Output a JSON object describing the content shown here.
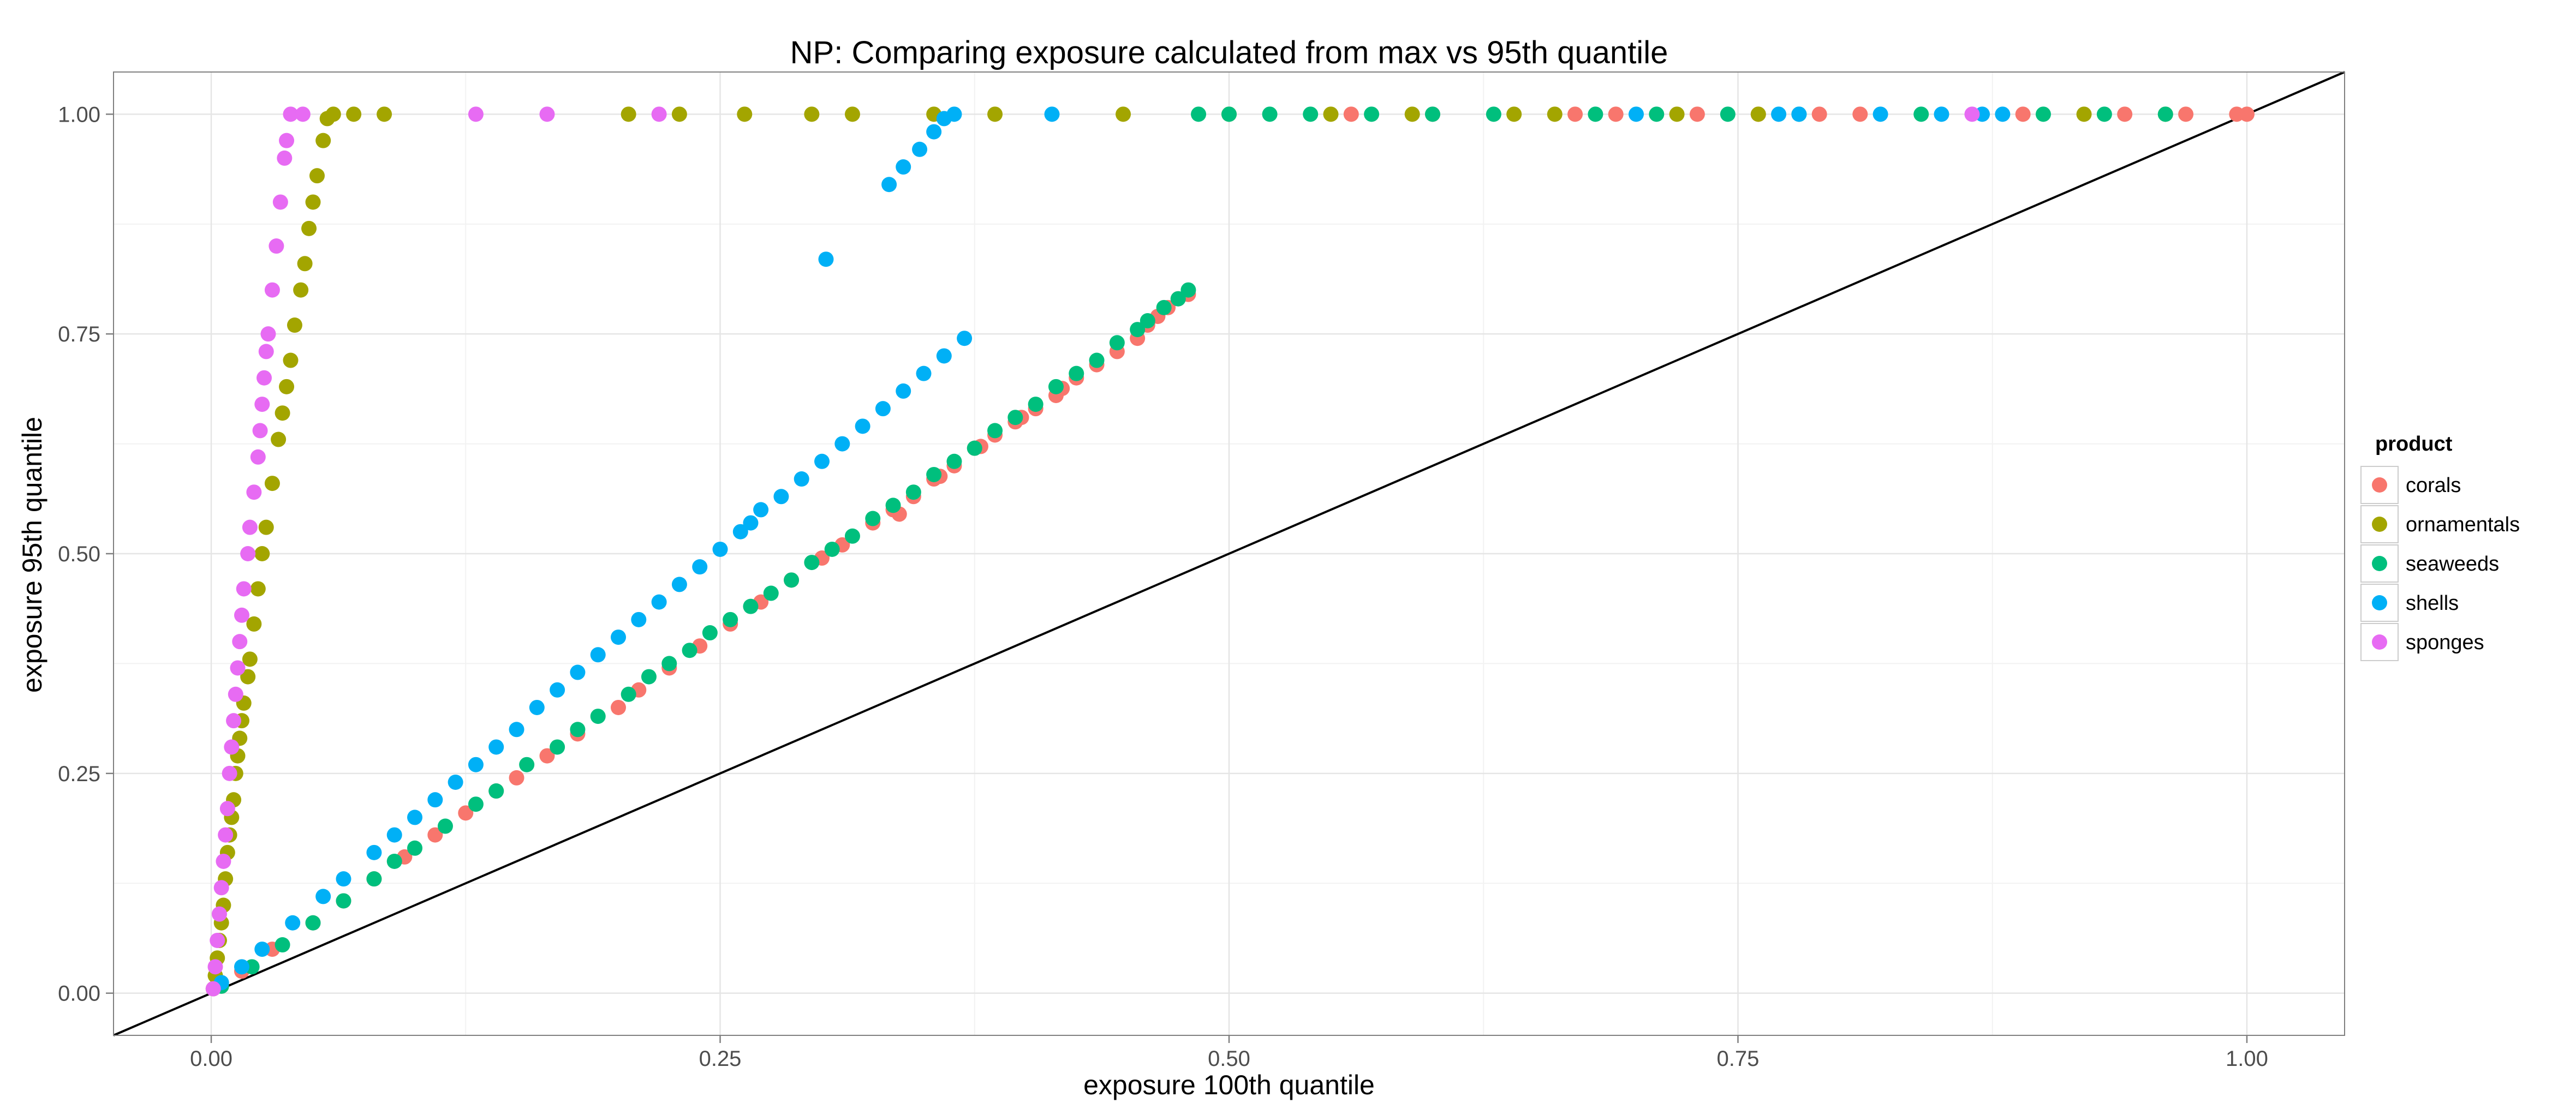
{
  "chart_data": {
    "type": "scatter",
    "title": "NP: Comparing exposure calculated from max vs 95th quantile",
    "xlabel": "exposure 100th quantile",
    "ylabel": "exposure 95th quantile",
    "xlim": [
      -0.048,
      1.048
    ],
    "ylim": [
      -0.048,
      1.048
    ],
    "x_ticks": [
      "0.00",
      "0.25",
      "0.50",
      "0.75",
      "1.00"
    ],
    "y_ticks": [
      "0.00",
      "0.25",
      "0.50",
      "0.75",
      "1.00"
    ],
    "grid": true,
    "legend": {
      "title": "product",
      "position": "right"
    },
    "reference_line": {
      "slope": 1,
      "intercept": 0
    },
    "series": [
      {
        "name": "corals",
        "color": "#F8766D",
        "points": [
          [
            0.005,
            0.008
          ],
          [
            0.015,
            0.025
          ],
          [
            0.03,
            0.05
          ],
          [
            0.05,
            0.08
          ],
          [
            0.065,
            0.105
          ],
          [
            0.08,
            0.13
          ],
          [
            0.095,
            0.155
          ],
          [
            0.11,
            0.18
          ],
          [
            0.125,
            0.205
          ],
          [
            0.14,
            0.23
          ],
          [
            0.15,
            0.245
          ],
          [
            0.165,
            0.27
          ],
          [
            0.18,
            0.295
          ],
          [
            0.2,
            0.325
          ],
          [
            0.21,
            0.345
          ],
          [
            0.225,
            0.37
          ],
          [
            0.24,
            0.395
          ],
          [
            0.255,
            0.42
          ],
          [
            0.27,
            0.445
          ],
          [
            0.285,
            0.47
          ],
          [
            0.3,
            0.495
          ],
          [
            0.31,
            0.51
          ],
          [
            0.325,
            0.535
          ],
          [
            0.335,
            0.55
          ],
          [
            0.345,
            0.565
          ],
          [
            0.355,
            0.585
          ],
          [
            0.365,
            0.6
          ],
          [
            0.375,
            0.62
          ],
          [
            0.385,
            0.635
          ],
          [
            0.395,
            0.65
          ],
          [
            0.405,
            0.665
          ],
          [
            0.415,
            0.68
          ],
          [
            0.425,
            0.7
          ],
          [
            0.435,
            0.715
          ],
          [
            0.445,
            0.73
          ],
          [
            0.455,
            0.745
          ],
          [
            0.46,
            0.76
          ],
          [
            0.465,
            0.77
          ],
          [
            0.47,
            0.78
          ],
          [
            0.475,
            0.79
          ],
          [
            0.48,
            0.795
          ],
          [
            0.338,
            0.545
          ],
          [
            0.358,
            0.588
          ],
          [
            0.378,
            0.622
          ],
          [
            0.398,
            0.655
          ],
          [
            0.418,
            0.688
          ],
          [
            0.56,
            1
          ],
          [
            0.6,
            1
          ],
          [
            0.67,
            1
          ],
          [
            0.69,
            1
          ],
          [
            0.73,
            1
          ],
          [
            0.76,
            1
          ],
          [
            0.79,
            1
          ],
          [
            0.81,
            1
          ],
          [
            0.89,
            1
          ],
          [
            0.94,
            1
          ],
          [
            0.97,
            1
          ],
          [
            0.995,
            1
          ],
          [
            1.0,
            1
          ]
        ]
      },
      {
        "name": "ornamentals",
        "color": "#A3A500",
        "points": [
          [
            0.001,
            0.005
          ],
          [
            0.002,
            0.02
          ],
          [
            0.003,
            0.04
          ],
          [
            0.004,
            0.06
          ],
          [
            0.005,
            0.08
          ],
          [
            0.006,
            0.1
          ],
          [
            0.007,
            0.13
          ],
          [
            0.008,
            0.16
          ],
          [
            0.009,
            0.18
          ],
          [
            0.01,
            0.2
          ],
          [
            0.011,
            0.22
          ],
          [
            0.012,
            0.25
          ],
          [
            0.013,
            0.27
          ],
          [
            0.014,
            0.29
          ],
          [
            0.015,
            0.31
          ],
          [
            0.016,
            0.33
          ],
          [
            0.018,
            0.36
          ],
          [
            0.019,
            0.38
          ],
          [
            0.021,
            0.42
          ],
          [
            0.023,
            0.46
          ],
          [
            0.025,
            0.5
          ],
          [
            0.027,
            0.53
          ],
          [
            0.03,
            0.58
          ],
          [
            0.033,
            0.63
          ],
          [
            0.035,
            0.66
          ],
          [
            0.037,
            0.69
          ],
          [
            0.039,
            0.72
          ],
          [
            0.041,
            0.76
          ],
          [
            0.044,
            0.8
          ],
          [
            0.046,
            0.83
          ],
          [
            0.048,
            0.87
          ],
          [
            0.05,
            0.9
          ],
          [
            0.052,
            0.93
          ],
          [
            0.055,
            0.97
          ],
          [
            0.057,
            0.995
          ],
          [
            0.06,
            1
          ],
          [
            0.07,
            1
          ],
          [
            0.085,
            1
          ],
          [
            0.205,
            1
          ],
          [
            0.23,
            1
          ],
          [
            0.262,
            1
          ],
          [
            0.295,
            1
          ],
          [
            0.315,
            1
          ],
          [
            0.355,
            1
          ],
          [
            0.385,
            1
          ],
          [
            0.448,
            1
          ],
          [
            0.5,
            1
          ],
          [
            0.55,
            1
          ],
          [
            0.59,
            1
          ],
          [
            0.64,
            1
          ],
          [
            0.66,
            1
          ],
          [
            0.72,
            1
          ],
          [
            0.76,
            1
          ],
          [
            0.92,
            1
          ],
          [
            0.96,
            1
          ]
        ]
      },
      {
        "name": "seaweeds",
        "color": "#00BF7D",
        "points": [
          [
            0.005,
            0.008
          ],
          [
            0.02,
            0.03
          ],
          [
            0.035,
            0.055
          ],
          [
            0.05,
            0.08
          ],
          [
            0.065,
            0.105
          ],
          [
            0.08,
            0.13
          ],
          [
            0.09,
            0.15
          ],
          [
            0.1,
            0.165
          ],
          [
            0.115,
            0.19
          ],
          [
            0.13,
            0.215
          ],
          [
            0.14,
            0.23
          ],
          [
            0.155,
            0.26
          ],
          [
            0.17,
            0.28
          ],
          [
            0.18,
            0.3
          ],
          [
            0.19,
            0.315
          ],
          [
            0.205,
            0.34
          ],
          [
            0.215,
            0.36
          ],
          [
            0.225,
            0.375
          ],
          [
            0.235,
            0.39
          ],
          [
            0.245,
            0.41
          ],
          [
            0.255,
            0.425
          ],
          [
            0.265,
            0.44
          ],
          [
            0.275,
            0.455
          ],
          [
            0.285,
            0.47
          ],
          [
            0.295,
            0.49
          ],
          [
            0.305,
            0.505
          ],
          [
            0.315,
            0.52
          ],
          [
            0.325,
            0.54
          ],
          [
            0.335,
            0.555
          ],
          [
            0.345,
            0.57
          ],
          [
            0.355,
            0.59
          ],
          [
            0.365,
            0.605
          ],
          [
            0.375,
            0.62
          ],
          [
            0.385,
            0.64
          ],
          [
            0.395,
            0.655
          ],
          [
            0.405,
            0.67
          ],
          [
            0.415,
            0.69
          ],
          [
            0.425,
            0.705
          ],
          [
            0.435,
            0.72
          ],
          [
            0.445,
            0.74
          ],
          [
            0.455,
            0.755
          ],
          [
            0.46,
            0.765
          ],
          [
            0.468,
            0.78
          ],
          [
            0.475,
            0.79
          ],
          [
            0.48,
            0.8
          ],
          [
            0.485,
            1
          ],
          [
            0.5,
            1
          ],
          [
            0.52,
            1
          ],
          [
            0.54,
            1
          ],
          [
            0.57,
            1
          ],
          [
            0.6,
            1
          ],
          [
            0.63,
            1
          ],
          [
            0.68,
            1
          ],
          [
            0.71,
            1
          ],
          [
            0.745,
            1
          ],
          [
            0.78,
            1
          ],
          [
            0.84,
            1
          ],
          [
            0.9,
            1
          ],
          [
            0.93,
            1
          ],
          [
            0.96,
            1
          ]
        ]
      },
      {
        "name": "shells",
        "color": "#00B0F6",
        "points": [
          [
            0.005,
            0.012
          ],
          [
            0.015,
            0.03
          ],
          [
            0.025,
            0.05
          ],
          [
            0.04,
            0.08
          ],
          [
            0.055,
            0.11
          ],
          [
            0.065,
            0.13
          ],
          [
            0.08,
            0.16
          ],
          [
            0.09,
            0.18
          ],
          [
            0.1,
            0.2
          ],
          [
            0.11,
            0.22
          ],
          [
            0.12,
            0.24
          ],
          [
            0.13,
            0.26
          ],
          [
            0.14,
            0.28
          ],
          [
            0.15,
            0.3
          ],
          [
            0.16,
            0.325
          ],
          [
            0.17,
            0.345
          ],
          [
            0.18,
            0.365
          ],
          [
            0.19,
            0.385
          ],
          [
            0.2,
            0.405
          ],
          [
            0.21,
            0.425
          ],
          [
            0.22,
            0.445
          ],
          [
            0.23,
            0.465
          ],
          [
            0.24,
            0.485
          ],
          [
            0.25,
            0.505
          ],
          [
            0.26,
            0.525
          ],
          [
            0.265,
            0.535
          ],
          [
            0.27,
            0.55
          ],
          [
            0.28,
            0.565
          ],
          [
            0.29,
            0.585
          ],
          [
            0.3,
            0.605
          ],
          [
            0.31,
            0.625
          ],
          [
            0.32,
            0.645
          ],
          [
            0.33,
            0.665
          ],
          [
            0.34,
            0.685
          ],
          [
            0.35,
            0.705
          ],
          [
            0.36,
            0.725
          ],
          [
            0.37,
            0.745
          ],
          [
            0.302,
            0.835
          ],
          [
            0.333,
            0.92
          ],
          [
            0.34,
            0.94
          ],
          [
            0.348,
            0.96
          ],
          [
            0.355,
            0.98
          ],
          [
            0.36,
            0.995
          ],
          [
            0.365,
            1
          ],
          [
            0.413,
            1
          ],
          [
            0.7,
            1
          ],
          [
            0.77,
            1
          ],
          [
            0.78,
            1
          ],
          [
            0.82,
            1
          ],
          [
            0.85,
            1
          ],
          [
            0.87,
            1
          ],
          [
            0.88,
            1
          ]
        ]
      },
      {
        "name": "sponges",
        "color": "#E76BF3",
        "points": [
          [
            0.001,
            0.005
          ],
          [
            0.002,
            0.03
          ],
          [
            0.003,
            0.06
          ],
          [
            0.004,
            0.09
          ],
          [
            0.005,
            0.12
          ],
          [
            0.006,
            0.15
          ],
          [
            0.007,
            0.18
          ],
          [
            0.008,
            0.21
          ],
          [
            0.009,
            0.25
          ],
          [
            0.01,
            0.28
          ],
          [
            0.011,
            0.31
          ],
          [
            0.012,
            0.34
          ],
          [
            0.013,
            0.37
          ],
          [
            0.014,
            0.4
          ],
          [
            0.015,
            0.43
          ],
          [
            0.016,
            0.46
          ],
          [
            0.018,
            0.5
          ],
          [
            0.019,
            0.53
          ],
          [
            0.021,
            0.57
          ],
          [
            0.023,
            0.61
          ],
          [
            0.024,
            0.64
          ],
          [
            0.025,
            0.67
          ],
          [
            0.026,
            0.7
          ],
          [
            0.027,
            0.73
          ],
          [
            0.028,
            0.75
          ],
          [
            0.03,
            0.8
          ],
          [
            0.032,
            0.85
          ],
          [
            0.034,
            0.9
          ],
          [
            0.036,
            0.95
          ],
          [
            0.037,
            0.97
          ],
          [
            0.039,
            1
          ],
          [
            0.045,
            1
          ],
          [
            0.13,
            1
          ],
          [
            0.165,
            1
          ],
          [
            0.22,
            1
          ],
          [
            0.865,
            1
          ]
        ]
      }
    ]
  }
}
